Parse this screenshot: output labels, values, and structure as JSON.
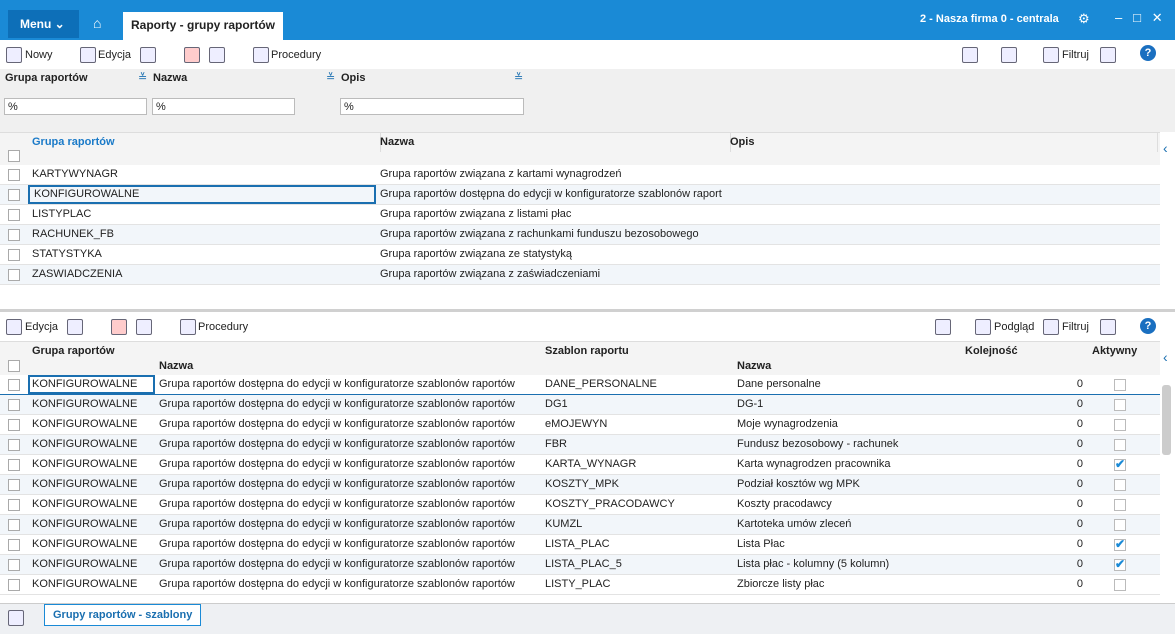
{
  "topbar": {
    "menu": "Menu",
    "tab": "Raporty - grupy raportów",
    "company": "2 - Nasza firma 0 - centrala"
  },
  "toolbar1": {
    "new": "Nowy",
    "edit": "Edycja",
    "procedures": "Procedury",
    "filter": "Filtruj"
  },
  "filters": {
    "labels": [
      "Grupa raportów",
      "Nazwa",
      "Opis"
    ],
    "inputs": [
      "%",
      "%",
      "%"
    ]
  },
  "grid1": {
    "headers": [
      "Grupa raportów",
      "Nazwa",
      "Opis"
    ],
    "rows": [
      [
        "KARTYWYNAGR",
        "Grupa raportów związana z kartami wynagrodzeń"
      ],
      [
        "KONFIGUROWALNE",
        "Grupa raportów dostępna do edycji w konfiguratorze szablonów raport"
      ],
      [
        "LISTYPLAC",
        "Grupa raportów związana z listami płac"
      ],
      [
        "RACHUNEK_FB",
        "Grupa raportów związana z rachunkami funduszu bezosobowego"
      ],
      [
        "STATYSTYKA",
        "Grupa raportów związana ze statystyką"
      ],
      [
        "ZASWIADCZENIA",
        "Grupa raportów związana z zaświadczeniami"
      ]
    ]
  },
  "toolbar2": {
    "edit": "Edycja",
    "procedures": "Procedury",
    "preview": "Podgląd",
    "filter": "Filtruj"
  },
  "grid2": {
    "headers": [
      "Grupa raportów",
      "Nazwa",
      "Szablon raportu",
      "Nazwa",
      "Kolejność",
      "Aktywny"
    ],
    "rows": [
      {
        "group": "KONFIGUROWALNE",
        "name": "Grupa raportów dostępna do edycji w konfiguratorze szablonów raportów",
        "template": "DANE_PERSONALNE",
        "template_name": "Dane personalne",
        "order": 0,
        "active": false
      },
      {
        "group": "KONFIGUROWALNE",
        "name": "Grupa raportów dostępna do edycji w konfiguratorze szablonów raportów",
        "template": "DG1",
        "template_name": "DG-1",
        "order": 0,
        "active": false
      },
      {
        "group": "KONFIGUROWALNE",
        "name": "Grupa raportów dostępna do edycji w konfiguratorze szablonów raportów",
        "template": "eMOJEWYN",
        "template_name": "Moje wynagrodzenia",
        "order": 0,
        "active": false
      },
      {
        "group": "KONFIGUROWALNE",
        "name": "Grupa raportów dostępna do edycji w konfiguratorze szablonów raportów",
        "template": "FBR",
        "template_name": "Fundusz bezosobowy - rachunek",
        "order": 0,
        "active": false
      },
      {
        "group": "KONFIGUROWALNE",
        "name": "Grupa raportów dostępna do edycji w konfiguratorze szablonów raportów",
        "template": "KARTA_WYNAGR",
        "template_name": "Karta wynagrodzen pracownika",
        "order": 0,
        "active": true
      },
      {
        "group": "KONFIGUROWALNE",
        "name": "Grupa raportów dostępna do edycji w konfiguratorze szablonów raportów",
        "template": "KOSZTY_MPK",
        "template_name": "Podział kosztów wg MPK",
        "order": 0,
        "active": false
      },
      {
        "group": "KONFIGUROWALNE",
        "name": "Grupa raportów dostępna do edycji w konfiguratorze szablonów raportów",
        "template": "KOSZTY_PRACODAWCY",
        "template_name": "Koszty pracodawcy",
        "order": 0,
        "active": false
      },
      {
        "group": "KONFIGUROWALNE",
        "name": "Grupa raportów dostępna do edycji w konfiguratorze szablonów raportów",
        "template": "KUMZL",
        "template_name": "Kartoteka umów zleceń",
        "order": 0,
        "active": false
      },
      {
        "group": "KONFIGUROWALNE",
        "name": "Grupa raportów dostępna do edycji w konfiguratorze szablonów raportów",
        "template": "LISTA_PLAC",
        "template_name": "Lista Płac",
        "order": 0,
        "active": true
      },
      {
        "group": "KONFIGUROWALNE",
        "name": "Grupa raportów dostępna do edycji w konfiguratorze szablonów raportów",
        "template": "LISTA_PLAC_5",
        "template_name": "Lista płac - kolumny (5 kolumn)",
        "order": 0,
        "active": true
      },
      {
        "group": "KONFIGUROWALNE",
        "name": "Grupa raportów dostępna do edycji w konfiguratorze szablonów raportów",
        "template": "LISTY_PLAC",
        "template_name": "Zbiorcze listy płac",
        "order": 0,
        "active": false
      }
    ]
  },
  "bottom": {
    "tab": "Grupy raportów - szablony"
  }
}
